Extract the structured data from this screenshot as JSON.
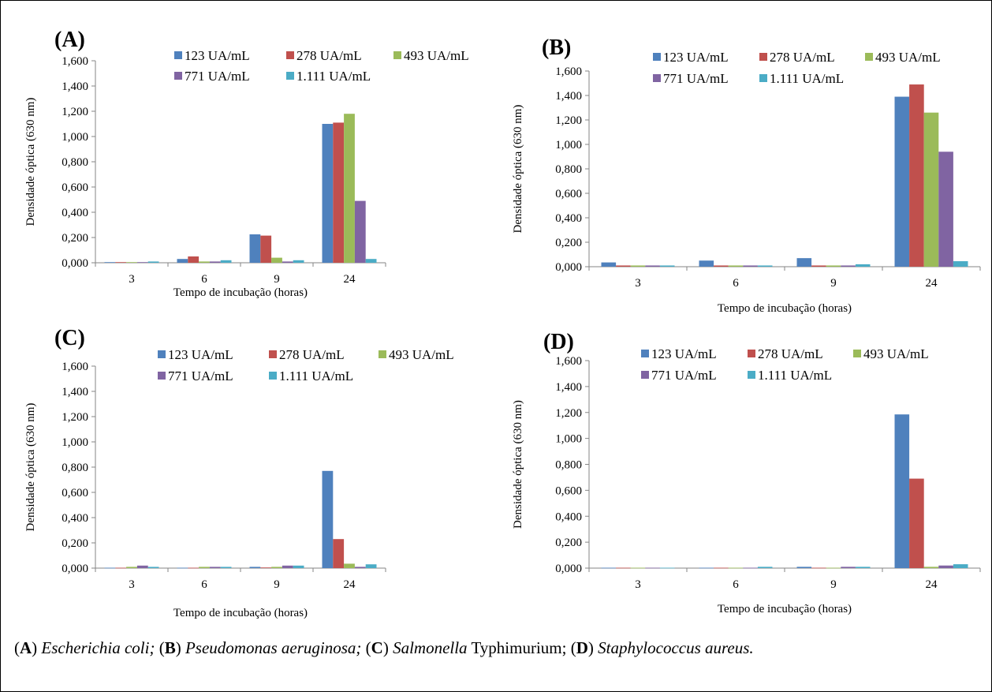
{
  "colors": [
    "#4F81BD",
    "#C0504D",
    "#9BBB59",
    "#8064A2",
    "#4BACC6"
  ],
  "legend": [
    "123 UA/mL",
    "278 UA/mL",
    "493 UA/mL",
    "771 UA/mL",
    "1.111 UA/mL"
  ],
  "chart_data": [
    {
      "type": "bar",
      "panel": "(A)",
      "categories": [
        "3",
        "6",
        "9",
        "24"
      ],
      "xlabel": "Tempo de incubação (horas)",
      "ylabel": "Densidade óptica (630 nm)",
      "ylim": [
        0,
        1.6
      ],
      "yticks": [
        "0,000",
        "0,200",
        "0,400",
        "0,600",
        "0,800",
        "1,000",
        "1,200",
        "1,400",
        "1,600"
      ],
      "legend_position": "top",
      "series": [
        {
          "name": "123 UA/mL",
          "values": [
            0.005,
            0.03,
            0.225,
            1.1
          ]
        },
        {
          "name": "278 UA/mL",
          "values": [
            0.005,
            0.05,
            0.215,
            1.11
          ]
        },
        {
          "name": "493 UA/mL",
          "values": [
            0.005,
            0.01,
            0.04,
            1.18
          ]
        },
        {
          "name": "771 UA/mL",
          "values": [
            0.005,
            0.01,
            0.01,
            0.49
          ]
        },
        {
          "name": "1.111 UA/mL",
          "values": [
            0.01,
            0.02,
            0.02,
            0.03
          ]
        }
      ]
    },
    {
      "type": "bar",
      "panel": "(B)",
      "categories": [
        "3",
        "6",
        "9",
        "24"
      ],
      "xlabel": "Tempo de incubação (horas)",
      "ylabel": "Densidade óptica (630 nm)",
      "ylim": [
        0,
        1.6
      ],
      "yticks": [
        "0,000",
        "0,200",
        "0,400",
        "0,600",
        "0,800",
        "1,000",
        "1,200",
        "1,400",
        "1,600"
      ],
      "legend_position": "top",
      "series": [
        {
          "name": "123 UA/mL",
          "values": [
            0.035,
            0.05,
            0.07,
            1.39
          ]
        },
        {
          "name": "278 UA/mL",
          "values": [
            0.01,
            0.01,
            0.01,
            1.49
          ]
        },
        {
          "name": "493 UA/mL",
          "values": [
            0.01,
            0.01,
            0.01,
            1.26
          ]
        },
        {
          "name": "771 UA/mL",
          "values": [
            0.01,
            0.01,
            0.01,
            0.94
          ]
        },
        {
          "name": "1.111 UA/mL",
          "values": [
            0.01,
            0.01,
            0.02,
            0.045
          ]
        }
      ]
    },
    {
      "type": "bar",
      "panel": "(C)",
      "categories": [
        "3",
        "6",
        "9",
        "24"
      ],
      "xlabel": "Tempo de incubação (horas)",
      "ylabel": "Densidade óptica (630 nm)",
      "ylim": [
        0,
        1.6
      ],
      "yticks": [
        "0,000",
        "0,200",
        "0,400",
        "0,600",
        "0,800",
        "1,000",
        "1,200",
        "1,400",
        "1,600"
      ],
      "legend_position": "top",
      "series": [
        {
          "name": "123 UA/mL",
          "values": [
            0.003,
            0.003,
            0.01,
            0.77
          ]
        },
        {
          "name": "278 UA/mL",
          "values": [
            0.003,
            0.003,
            0.005,
            0.23
          ]
        },
        {
          "name": "493 UA/mL",
          "values": [
            0.01,
            0.01,
            0.01,
            0.035
          ]
        },
        {
          "name": "771 UA/mL",
          "values": [
            0.02,
            0.01,
            0.02,
            0.01
          ]
        },
        {
          "name": "1.111 UA/mL",
          "values": [
            0.01,
            0.01,
            0.02,
            0.03
          ]
        }
      ]
    },
    {
      "type": "bar",
      "panel": "(D)",
      "categories": [
        "3",
        "6",
        "9",
        "24"
      ],
      "xlabel": "Tempo de incubação (horas)",
      "ylabel": "Densidade óptica (630 nm)",
      "ylim": [
        0,
        1.6
      ],
      "yticks": [
        "0,000",
        "0,200",
        "0,400",
        "0,600",
        "0,800",
        "1,000",
        "1,200",
        "1,400",
        "1,600"
      ],
      "legend_position": "top",
      "series": [
        {
          "name": "123 UA/mL",
          "values": [
            0.003,
            0.003,
            0.01,
            1.185
          ]
        },
        {
          "name": "278 UA/mL",
          "values": [
            0.003,
            0.003,
            0.003,
            0.69
          ]
        },
        {
          "name": "493 UA/mL",
          "values": [
            0.003,
            0.003,
            0.003,
            0.01
          ]
        },
        {
          "name": "771 UA/mL",
          "values": [
            0.003,
            0.003,
            0.01,
            0.02
          ]
        },
        {
          "name": "1.111 UA/mL",
          "values": [
            0.003,
            0.01,
            0.01,
            0.03
          ]
        }
      ]
    }
  ],
  "caption": {
    "a_letter": "A",
    "a_name": "Escherichia coli;",
    "b_letter": "B",
    "b_name": "Pseudomonas aeruginosa;",
    "c_letter": "C",
    "c_genus": "Salmonella",
    "c_serovar": "Typhimurium;",
    "d_letter": "D",
    "d_name": "Staphylococcus aureus."
  }
}
